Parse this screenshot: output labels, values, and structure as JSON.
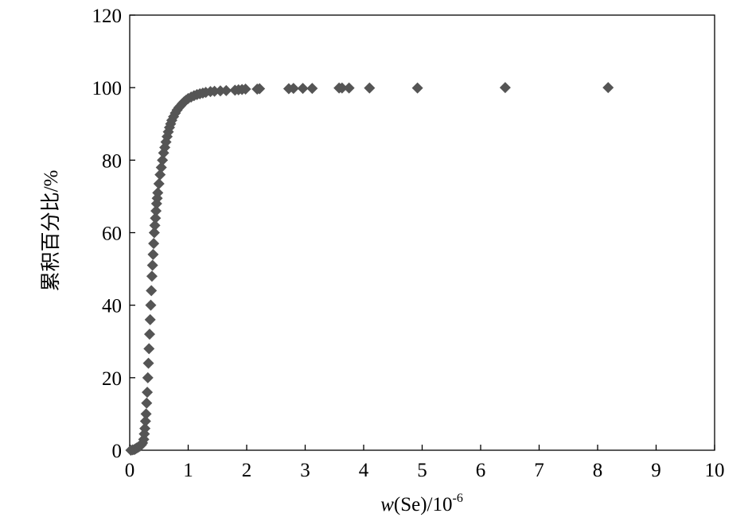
{
  "chart_data": {
    "type": "scatter",
    "xlabel_italic": "w",
    "xlabel_main": "(Se)/10",
    "xlabel_sup": "-6",
    "ylabel": "累积百分比/%",
    "xlim": [
      0,
      10
    ],
    "ylim": [
      0,
      120
    ],
    "x_ticks": [
      "0",
      "1",
      "2",
      "3",
      "4",
      "5",
      "6",
      "7",
      "8",
      "9",
      "10"
    ],
    "y_ticks": [
      "0",
      "20",
      "40",
      "60",
      "80",
      "100",
      "120"
    ],
    "grid": false,
    "legend": "none",
    "marker": "diamond",
    "marker_color": "#555555",
    "series": [
      {
        "points": [
          [
            0.02,
            0.0
          ],
          [
            0.05,
            0.1
          ],
          [
            0.08,
            0.2
          ],
          [
            0.1,
            0.4
          ],
          [
            0.12,
            0.6
          ],
          [
            0.14,
            0.8
          ],
          [
            0.16,
            1.0
          ],
          [
            0.18,
            1.2
          ],
          [
            0.2,
            1.5
          ],
          [
            0.22,
            2.0
          ],
          [
            0.24,
            3.0
          ],
          [
            0.25,
            4.5
          ],
          [
            0.26,
            6.0
          ],
          [
            0.27,
            8.0
          ],
          [
            0.28,
            10.0
          ],
          [
            0.29,
            13.0
          ],
          [
            0.3,
            16.0
          ],
          [
            0.31,
            20.0
          ],
          [
            0.32,
            24.0
          ],
          [
            0.33,
            28.0
          ],
          [
            0.34,
            32.0
          ],
          [
            0.35,
            36.0
          ],
          [
            0.36,
            40.0
          ],
          [
            0.37,
            44.0
          ],
          [
            0.38,
            48.0
          ],
          [
            0.39,
            51.0
          ],
          [
            0.4,
            54.0
          ],
          [
            0.41,
            57.0
          ],
          [
            0.42,
            60.0
          ],
          [
            0.43,
            62.0
          ],
          [
            0.44,
            64.0
          ],
          [
            0.45,
            66.0
          ],
          [
            0.46,
            68.0
          ],
          [
            0.47,
            69.5
          ],
          [
            0.48,
            71.0
          ],
          [
            0.5,
            73.5
          ],
          [
            0.52,
            76.0
          ],
          [
            0.54,
            78.0
          ],
          [
            0.56,
            80.0
          ],
          [
            0.58,
            82.0
          ],
          [
            0.6,
            83.5
          ],
          [
            0.62,
            85.0
          ],
          [
            0.64,
            86.5
          ],
          [
            0.66,
            87.8
          ],
          [
            0.68,
            89.0
          ],
          [
            0.7,
            90.0
          ],
          [
            0.72,
            91.0
          ],
          [
            0.75,
            92.0
          ],
          [
            0.78,
            93.0
          ],
          [
            0.81,
            93.8
          ],
          [
            0.84,
            94.5
          ],
          [
            0.87,
            95.0
          ],
          [
            0.9,
            95.6
          ],
          [
            0.93,
            96.1
          ],
          [
            0.96,
            96.5
          ],
          [
            1.0,
            97.0
          ],
          [
            1.05,
            97.4
          ],
          [
            1.1,
            97.8
          ],
          [
            1.15,
            98.1
          ],
          [
            1.2,
            98.3
          ],
          [
            1.25,
            98.5
          ],
          [
            1.3,
            98.7
          ],
          [
            1.38,
            98.9
          ],
          [
            1.45,
            99.0
          ],
          [
            1.55,
            99.1
          ],
          [
            1.65,
            99.2
          ],
          [
            1.8,
            99.3
          ],
          [
            1.86,
            99.4
          ],
          [
            1.92,
            99.5
          ],
          [
            1.98,
            99.6
          ],
          [
            2.18,
            99.6
          ],
          [
            2.22,
            99.7
          ],
          [
            2.72,
            99.7
          ],
          [
            2.8,
            99.8
          ],
          [
            2.96,
            99.8
          ],
          [
            3.12,
            99.8
          ],
          [
            3.58,
            99.9
          ],
          [
            3.63,
            99.9
          ],
          [
            3.75,
            99.9
          ],
          [
            4.1,
            99.9
          ],
          [
            4.92,
            99.9
          ],
          [
            6.42,
            100.0
          ],
          [
            8.18,
            100.0
          ]
        ]
      }
    ]
  }
}
